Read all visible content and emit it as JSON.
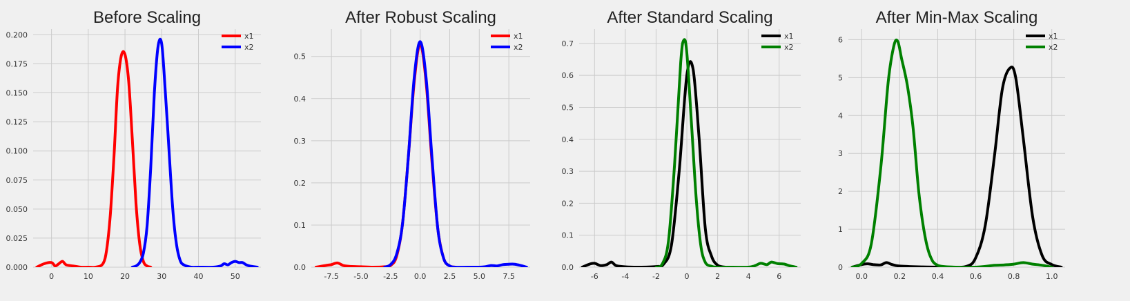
{
  "chart_data": [
    {
      "type": "line",
      "title": "Before Scaling",
      "xlim": [
        -5,
        57
      ],
      "ylim": [
        0,
        0.205
      ],
      "xticks": [
        0,
        10,
        20,
        30,
        40,
        50
      ],
      "xtick_labels": [
        "0",
        "10",
        "20",
        "30",
        "40",
        "50"
      ],
      "yticks": [
        0,
        0.025,
        0.05,
        0.075,
        0.1,
        0.125,
        0.15,
        0.175,
        0.2
      ],
      "ytick_labels": [
        "0.000",
        "0.025",
        "0.050",
        "0.075",
        "0.100",
        "0.125",
        "0.150",
        "0.175",
        "0.200"
      ],
      "legend_position": "top-right",
      "series": [
        {
          "name": "x1",
          "color": "#ff0000",
          "x": [
            -4,
            -2,
            0,
            1,
            2,
            3,
            4,
            6,
            8,
            10,
            12,
            14,
            15,
            16,
            17,
            18,
            19,
            20,
            21,
            22,
            23,
            24,
            25,
            26,
            27
          ],
          "y": [
            0.0,
            0.003,
            0.004,
            0.001,
            0.003,
            0.005,
            0.002,
            0.001,
            0.0,
            0.0,
            0.0,
            0.003,
            0.015,
            0.045,
            0.095,
            0.155,
            0.182,
            0.183,
            0.16,
            0.11,
            0.055,
            0.02,
            0.005,
            0.001,
            0.0
          ]
        },
        {
          "name": "x2",
          "color": "#0000ff",
          "x": [
            22,
            23,
            24,
            25,
            26,
            27,
            28,
            29,
            30,
            31,
            32,
            33,
            34,
            35,
            36,
            38,
            40,
            44,
            46,
            47,
            48,
            49,
            50,
            51,
            52,
            53,
            54,
            56
          ],
          "y": [
            0.0,
            0.001,
            0.004,
            0.012,
            0.035,
            0.085,
            0.15,
            0.19,
            0.192,
            0.15,
            0.1,
            0.05,
            0.02,
            0.006,
            0.002,
            0.0,
            0.0,
            0.0,
            0.001,
            0.003,
            0.002,
            0.004,
            0.005,
            0.004,
            0.004,
            0.002,
            0.001,
            0.0
          ]
        }
      ]
    },
    {
      "type": "line",
      "title": "After Robust Scaling",
      "xlim": [
        -9.2,
        9.3
      ],
      "ylim": [
        0,
        0.565
      ],
      "xticks": [
        -7.5,
        -5,
        -2.5,
        0,
        2.5,
        5,
        7.5
      ],
      "xtick_labels": [
        "-7.5",
        "-5.0",
        "-2.5",
        "0.0",
        "2.5",
        "5.0",
        "7.5"
      ],
      "yticks": [
        0,
        0.1,
        0.2,
        0.3,
        0.4,
        0.5
      ],
      "ytick_labels": [
        "0.0",
        "0.1",
        "0.2",
        "0.3",
        "0.4",
        "0.5"
      ],
      "legend_position": "top-right",
      "series": [
        {
          "name": "x1",
          "color": "#ff0000",
          "x": [
            -8.8,
            -8,
            -7.5,
            -7,
            -6.5,
            -6,
            -5,
            -4,
            -3,
            -2.5,
            -2,
            -1.5,
            -1,
            -0.5,
            0,
            0.5,
            1,
            1.5,
            2,
            2.5,
            3
          ],
          "y": [
            0.0,
            0.004,
            0.006,
            0.01,
            0.004,
            0.002,
            0.001,
            0.0,
            0.001,
            0.004,
            0.025,
            0.1,
            0.26,
            0.44,
            0.53,
            0.44,
            0.25,
            0.09,
            0.02,
            0.003,
            0.0
          ]
        },
        {
          "name": "x2",
          "color": "#0000ff",
          "x": [
            -3,
            -2.5,
            -2,
            -1.5,
            -1,
            -0.5,
            0,
            0.5,
            1,
            1.5,
            2,
            2.5,
            3,
            4,
            5,
            5.5,
            6,
            6.5,
            7,
            7.5,
            8,
            8.5,
            9
          ],
          "y": [
            0.0,
            0.006,
            0.03,
            0.1,
            0.26,
            0.45,
            0.535,
            0.45,
            0.26,
            0.09,
            0.02,
            0.003,
            0.0,
            0.0,
            0.0,
            0.001,
            0.004,
            0.003,
            0.006,
            0.007,
            0.007,
            0.004,
            0.0
          ]
        }
      ]
    },
    {
      "type": "line",
      "title": "After Standard Scaling",
      "xlim": [
        -7.0,
        7.4
      ],
      "ylim": [
        0,
        0.745
      ],
      "xticks": [
        -6,
        -4,
        -2,
        0,
        2,
        4,
        6
      ],
      "xtick_labels": [
        "-6",
        "-4",
        "-2",
        "0",
        "2",
        "4",
        "6"
      ],
      "yticks": [
        0,
        0.1,
        0.2,
        0.3,
        0.4,
        0.5,
        0.6,
        0.7
      ],
      "ytick_labels": [
        "0.0",
        "0.1",
        "0.2",
        "0.3",
        "0.4",
        "0.5",
        "0.6",
        "0.7"
      ],
      "legend_position": "top-right",
      "series": [
        {
          "name": "x1",
          "color": "#000000",
          "x": [
            -6.8,
            -6.3,
            -6,
            -5.6,
            -5.2,
            -4.9,
            -4.6,
            -4,
            -3,
            -2,
            -1.5,
            -1,
            -0.5,
            0,
            0.4,
            0.8,
            1.2,
            1.6,
            2,
            2.5
          ],
          "y": [
            0.0,
            0.01,
            0.012,
            0.005,
            0.008,
            0.016,
            0.005,
            0.001,
            0.0,
            0.002,
            0.01,
            0.07,
            0.3,
            0.6,
            0.62,
            0.4,
            0.12,
            0.035,
            0.006,
            0.0
          ]
        },
        {
          "name": "x2",
          "color": "#008000",
          "x": [
            -2,
            -1.6,
            -1.2,
            -0.8,
            -0.4,
            -0.2,
            0,
            0.3,
            0.6,
            0.9,
            1.2,
            1.6,
            2,
            3,
            4,
            4.4,
            4.8,
            5.2,
            5.5,
            5.9,
            6.3,
            6.7,
            7.1
          ],
          "y": [
            0.0,
            0.01,
            0.08,
            0.32,
            0.64,
            0.71,
            0.67,
            0.45,
            0.22,
            0.07,
            0.015,
            0.003,
            0.0,
            0.0,
            0.0,
            0.004,
            0.012,
            0.008,
            0.016,
            0.011,
            0.01,
            0.004,
            0.0
          ]
        }
      ]
    },
    {
      "type": "line",
      "title": "After Min-Max Scaling",
      "xlim": [
        -0.07,
        1.07
      ],
      "ylim": [
        0,
        6.28
      ],
      "xticks": [
        0.0,
        0.2,
        0.4,
        0.6,
        0.8,
        1.0
      ],
      "xtick_labels": [
        "0.0",
        "0.2",
        "0.4",
        "0.6",
        "0.8",
        "1.0"
      ],
      "yticks": [
        0,
        1,
        2,
        3,
        4,
        5,
        6
      ],
      "ytick_labels": [
        "0",
        "1",
        "2",
        "3",
        "4",
        "5",
        "6"
      ],
      "legend_position": "top-right",
      "series": [
        {
          "name": "x1",
          "color": "#000000",
          "x": [
            -0.05,
            0.0,
            0.03,
            0.06,
            0.1,
            0.13,
            0.16,
            0.2,
            0.3,
            0.45,
            0.55,
            0.6,
            0.65,
            0.7,
            0.74,
            0.78,
            0.81,
            0.85,
            0.9,
            0.95,
            1.0,
            1.05
          ],
          "y": [
            0.0,
            0.07,
            0.09,
            0.07,
            0.06,
            0.12,
            0.07,
            0.03,
            0.01,
            0.0,
            0.02,
            0.25,
            1.1,
            3.0,
            4.7,
            5.25,
            5.0,
            3.4,
            1.3,
            0.3,
            0.07,
            0.0
          ]
        },
        {
          "name": "x2",
          "color": "#008000",
          "x": [
            -0.05,
            0.0,
            0.05,
            0.1,
            0.14,
            0.17,
            0.19,
            0.21,
            0.24,
            0.27,
            0.3,
            0.33,
            0.36,
            0.4,
            0.5,
            0.6,
            0.65,
            0.7,
            0.75,
            0.8,
            0.85,
            0.9,
            0.95,
            1.0
          ],
          "y": [
            0.0,
            0.1,
            0.6,
            2.6,
            4.9,
            5.85,
            5.95,
            5.5,
            4.8,
            3.7,
            2.0,
            0.9,
            0.3,
            0.05,
            0.0,
            0.0,
            0.02,
            0.05,
            0.06,
            0.08,
            0.12,
            0.08,
            0.05,
            0.0
          ]
        }
      ]
    }
  ]
}
